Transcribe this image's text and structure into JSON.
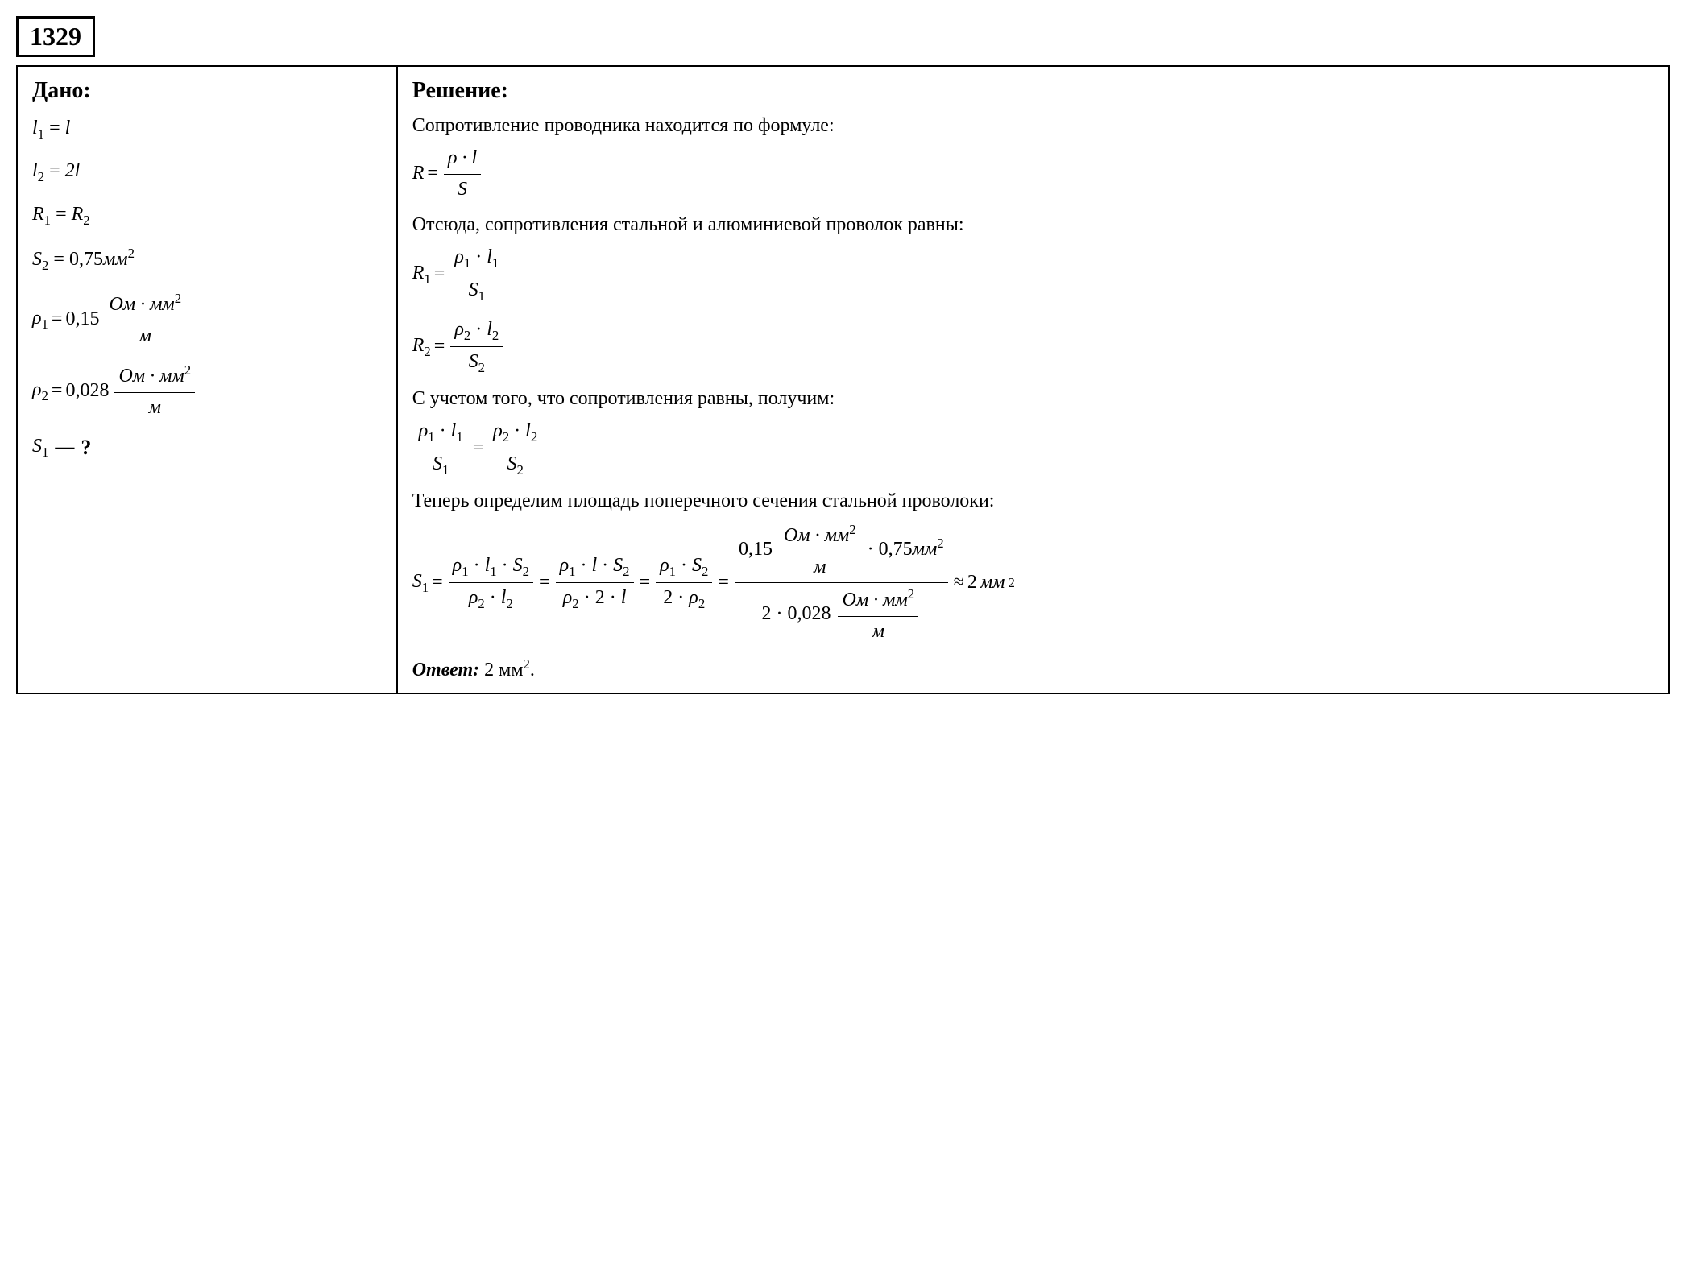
{
  "problem_number": "1329",
  "given": {
    "title": "Дано:",
    "l1_var": "l",
    "l1_sub": "1",
    "l1_val": "l",
    "l2_var": "l",
    "l2_sub": "2",
    "l2_val": "2l",
    "R1_var": "R",
    "R1_sub": "1",
    "R2_var": "R",
    "R2_sub": "2",
    "S2_var": "S",
    "S2_sub": "2",
    "S2_val": "0,75",
    "S2_unit": "мм",
    "S2_sup": "2",
    "rho1_var": "ρ",
    "rho1_sub": "1",
    "rho1_val": "0,15",
    "rho1_unit_num": "Ом · мм",
    "rho1_unit_num_sup": "2",
    "rho1_unit_den": "м",
    "rho2_var": "ρ",
    "rho2_sub": "2",
    "rho2_val": "0,028",
    "rho2_unit_num": "Ом · мм",
    "rho2_unit_num_sup": "2",
    "rho2_unit_den": "м",
    "find_var": "S",
    "find_sub": "1",
    "qmark": "?"
  },
  "solution": {
    "title": "Решение:",
    "text1": "Сопротивление проводника находится по формуле:",
    "formula_R_lhs": "R",
    "formula_R_num": "ρ · l",
    "formula_R_den": "S",
    "text2": "Отсюда, сопротивления стальной и алюминиевой проволок равны:",
    "R1_lhs_var": "R",
    "R1_lhs_sub": "1",
    "R1_num_a": "ρ",
    "R1_num_a_sub": "1",
    "R1_num_b": "l",
    "R1_num_b_sub": "1",
    "R1_den": "S",
    "R1_den_sub": "1",
    "R2_lhs_var": "R",
    "R2_lhs_sub": "2",
    "R2_num_a": "ρ",
    "R2_num_a_sub": "2",
    "R2_num_b": "l",
    "R2_num_b_sub": "2",
    "R2_den": "S",
    "R2_den_sub": "2",
    "text3": "С учетом того, что сопротивления равны, получим:",
    "eq_left_num_a": "ρ",
    "eq_left_num_a_sub": "1",
    "eq_left_num_b": "l",
    "eq_left_num_b_sub": "1",
    "eq_left_den": "S",
    "eq_left_den_sub": "1",
    "eq_right_num_a": "ρ",
    "eq_right_num_a_sub": "2",
    "eq_right_num_b": "l",
    "eq_right_num_b_sub": "2",
    "eq_right_den": "S",
    "eq_right_den_sub": "2",
    "text4": "Теперь определим площадь поперечного сечения стальной проволоки:",
    "final_lhs_var": "S",
    "final_lhs_sub": "1",
    "f1_num_a": "ρ",
    "f1_num_a_sub": "1",
    "f1_num_b": "l",
    "f1_num_b_sub": "1",
    "f1_num_c": "S",
    "f1_num_c_sub": "2",
    "f1_den_a": "ρ",
    "f1_den_a_sub": "2",
    "f1_den_b": "l",
    "f1_den_b_sub": "2",
    "f2_num_a": "ρ",
    "f2_num_a_sub": "1",
    "f2_num_b": "l",
    "f2_num_c": "S",
    "f2_num_c_sub": "2",
    "f2_den_a": "ρ",
    "f2_den_a_sub": "2",
    "f2_den_pre": "2",
    "f2_den_b": "l",
    "f3_num_a": "ρ",
    "f3_num_a_sub": "1",
    "f3_num_b": "S",
    "f3_num_b_sub": "2",
    "f3_den_pre": "2",
    "f3_den_a": "ρ",
    "f3_den_a_sub": "2",
    "calc_num_val": "0,15",
    "calc_num_unit_num": "Ом · мм",
    "calc_num_unit_num_sup": "2",
    "calc_num_unit_den": "м",
    "calc_num_s2": "0,75",
    "calc_num_s2_unit": "мм",
    "calc_num_s2_sup": "2",
    "calc_den_pre": "2",
    "calc_den_val": "0,028",
    "calc_den_unit_num": "Ом · мм",
    "calc_den_unit_num_sup": "2",
    "calc_den_unit_den": "м",
    "approx": "≈",
    "result_val": "2",
    "result_unit": "мм",
    "result_sup": "2",
    "answer_label": "Ответ:",
    "answer_val": "2 мм",
    "answer_sup": "2",
    "dot": "·",
    "eq": "="
  },
  "style": {
    "border_color": "#000000",
    "background_color": "#ffffff",
    "text_color": "#000000",
    "body_fontsize": 24,
    "title_fontsize": 28,
    "number_fontsize": 32
  }
}
